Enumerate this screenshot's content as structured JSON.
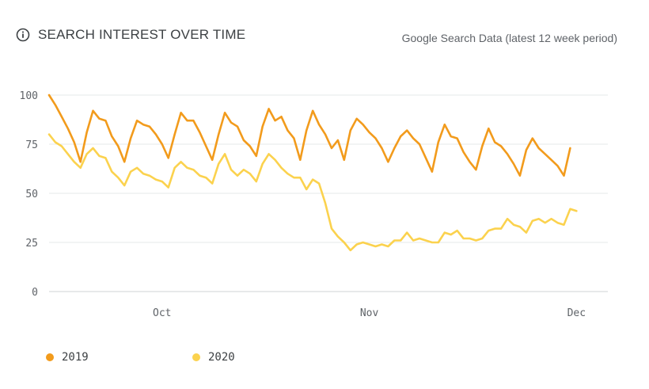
{
  "header": {
    "title": "SEARCH INTEREST OVER TIME",
    "source": "Google Search Data (latest 12 week period)"
  },
  "chart_data": {
    "type": "line",
    "title": "SEARCH INTEREST OVER TIME",
    "ylim": [
      0,
      100
    ],
    "yticks": [
      0,
      25,
      50,
      75,
      100
    ],
    "xticks": [
      {
        "label": "Oct",
        "x": 18
      },
      {
        "label": "Nov",
        "x": 51
      },
      {
        "label": "Dec",
        "x": 84
      }
    ],
    "xlim": [
      0,
      89
    ],
    "grid": true,
    "legend_position": "bottom-left",
    "series": [
      {
        "name": "2019",
        "color": "#f29b1c",
        "values": [
          100,
          95,
          89,
          83,
          76,
          66,
          81,
          92,
          88,
          87,
          79,
          74,
          66,
          78,
          87,
          85,
          84,
          80,
          75,
          68,
          80,
          91,
          87,
          87,
          81,
          74,
          67,
          80,
          91,
          86,
          84,
          77,
          74,
          69,
          84,
          93,
          87,
          89,
          82,
          78,
          67,
          82,
          92,
          85,
          80,
          73,
          77,
          67,
          82,
          88,
          85,
          81,
          78,
          73,
          66,
          73,
          79,
          82,
          78,
          75,
          68,
          61,
          76,
          85,
          79,
          78,
          71,
          66,
          62,
          74,
          83,
          76,
          74,
          70,
          65,
          59,
          72,
          78,
          73,
          70,
          67,
          64,
          59,
          73
        ],
        "x_start": 0
      },
      {
        "name": "2020",
        "color": "#fbd24e",
        "values": [
          80,
          76,
          74,
          70,
          66,
          63,
          70,
          73,
          69,
          68,
          61,
          58,
          54,
          61,
          63,
          60,
          59,
          57,
          56,
          53,
          63,
          66,
          63,
          62,
          59,
          58,
          55,
          65,
          70,
          62,
          59,
          62,
          60,
          56,
          65,
          70,
          67,
          63,
          60,
          58,
          58,
          52,
          57,
          55,
          45,
          32,
          28,
          25,
          21,
          24,
          25,
          24,
          23,
          24,
          23,
          26,
          26,
          30,
          26,
          27,
          26,
          25,
          25,
          30,
          29,
          31,
          27,
          27,
          26,
          27,
          31,
          32,
          32,
          37,
          34,
          33,
          30,
          36,
          37,
          35,
          37,
          35,
          34,
          42,
          41
        ],
        "x_start": 0
      }
    ]
  },
  "legend": {
    "items": [
      {
        "label": "2019",
        "color": "#f29b1c"
      },
      {
        "label": "2020",
        "color": "#fbd24e"
      }
    ]
  },
  "icons": {
    "info": "info-icon"
  }
}
